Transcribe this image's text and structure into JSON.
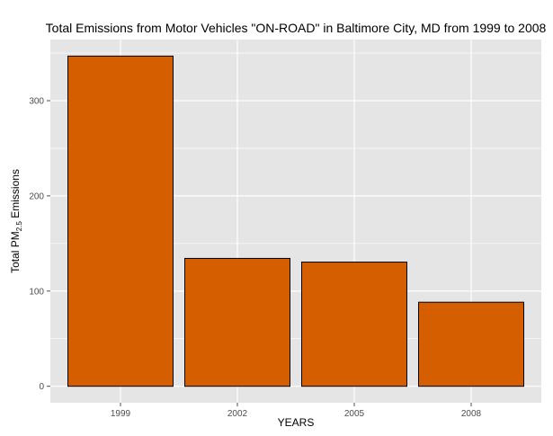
{
  "chart_data": {
    "type": "bar",
    "title": "Total Emissions from Motor Vehicles \"ON-ROAD\" in Baltimore City, MD from 1999 to 2008",
    "xlabel": "YEARS",
    "ylabel": {
      "prefix": "Total PM",
      "subscript": "2.5",
      "suffix": " Emissions"
    },
    "categories": [
      "1999",
      "2002",
      "2005",
      "2008"
    ],
    "values": [
      346.82,
      134.31,
      130.43,
      88.28
    ],
    "ylim": [
      -17.3,
      364.2
    ],
    "yticks": [
      0,
      100,
      200,
      300
    ],
    "grid": true,
    "bar_color": "#D55E00",
    "bar_edge_color": "#000000",
    "panel_color": "#E5E5E5",
    "grid_color": "#FFFFFF"
  }
}
